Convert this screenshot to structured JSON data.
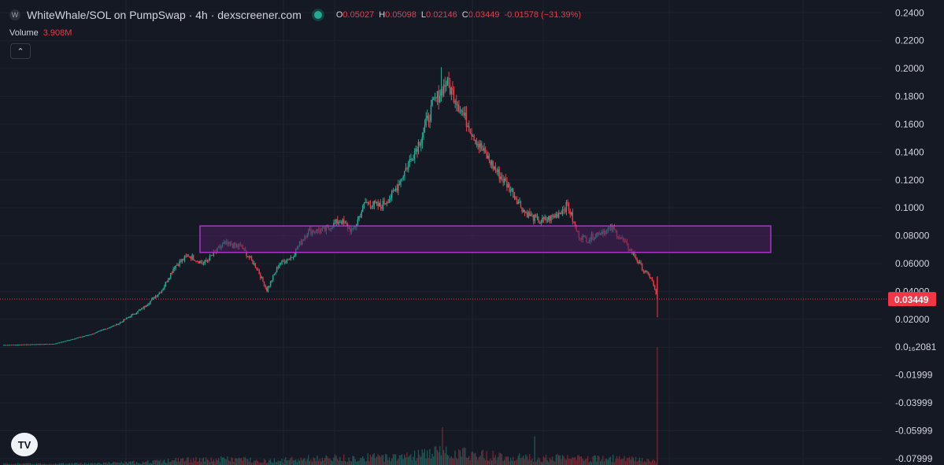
{
  "header": {
    "logo_letter": "W",
    "title": "WhiteWhale/SOL on PumpSwap · 4h · dexscreener.com",
    "ohlc": {
      "o_label": "O",
      "o_value": "0.05027",
      "h_label": "H",
      "h_value": "0.05098",
      "l_label": "L",
      "l_value": "0.02146",
      "c_label": "C",
      "c_value": "0.03449",
      "change": "-0.01578 (−31.39%)"
    }
  },
  "volume_legend": {
    "label": "Volume",
    "value": "3.908M"
  },
  "collapse_icon": "chevron-up-icon",
  "tv_logo_text": "TV",
  "colors": {
    "background": "#151924",
    "up": "#22ab94",
    "down": "#f23645",
    "zone_border": "#b22fcf",
    "zone_fill": "#4a1f5e",
    "grid": "#1e222d",
    "axis_text": "#d1d4dc"
  },
  "chart_data": {
    "type": "candlestick",
    "price_axis": {
      "ticks": [
        "0.2400",
        "0.2200",
        "0.2000",
        "0.1800",
        "0.1600",
        "0.1400",
        "0.1200",
        "0.1000",
        "0.08000",
        "0.06000",
        "0.04000",
        "0.02000",
        "0.0₁₆2081",
        "-0.01999",
        "-0.03999",
        "-0.05999",
        "-0.07999"
      ],
      "tick_values": [
        0.24,
        0.22,
        0.2,
        0.18,
        0.16,
        0.14,
        0.12,
        0.1,
        0.08,
        0.06,
        0.04,
        0.02,
        0,
        -0.02,
        -0.04,
        -0.06,
        -0.08
      ],
      "range": [
        -0.0846,
        0.2492
      ]
    },
    "last_price": {
      "label": "0.03449",
      "value": 0.03449
    },
    "zone": {
      "low": 0.068,
      "high": 0.087,
      "from_index": 45,
      "to_index": 179
    },
    "candles": [],
    "volumes": []
  }
}
